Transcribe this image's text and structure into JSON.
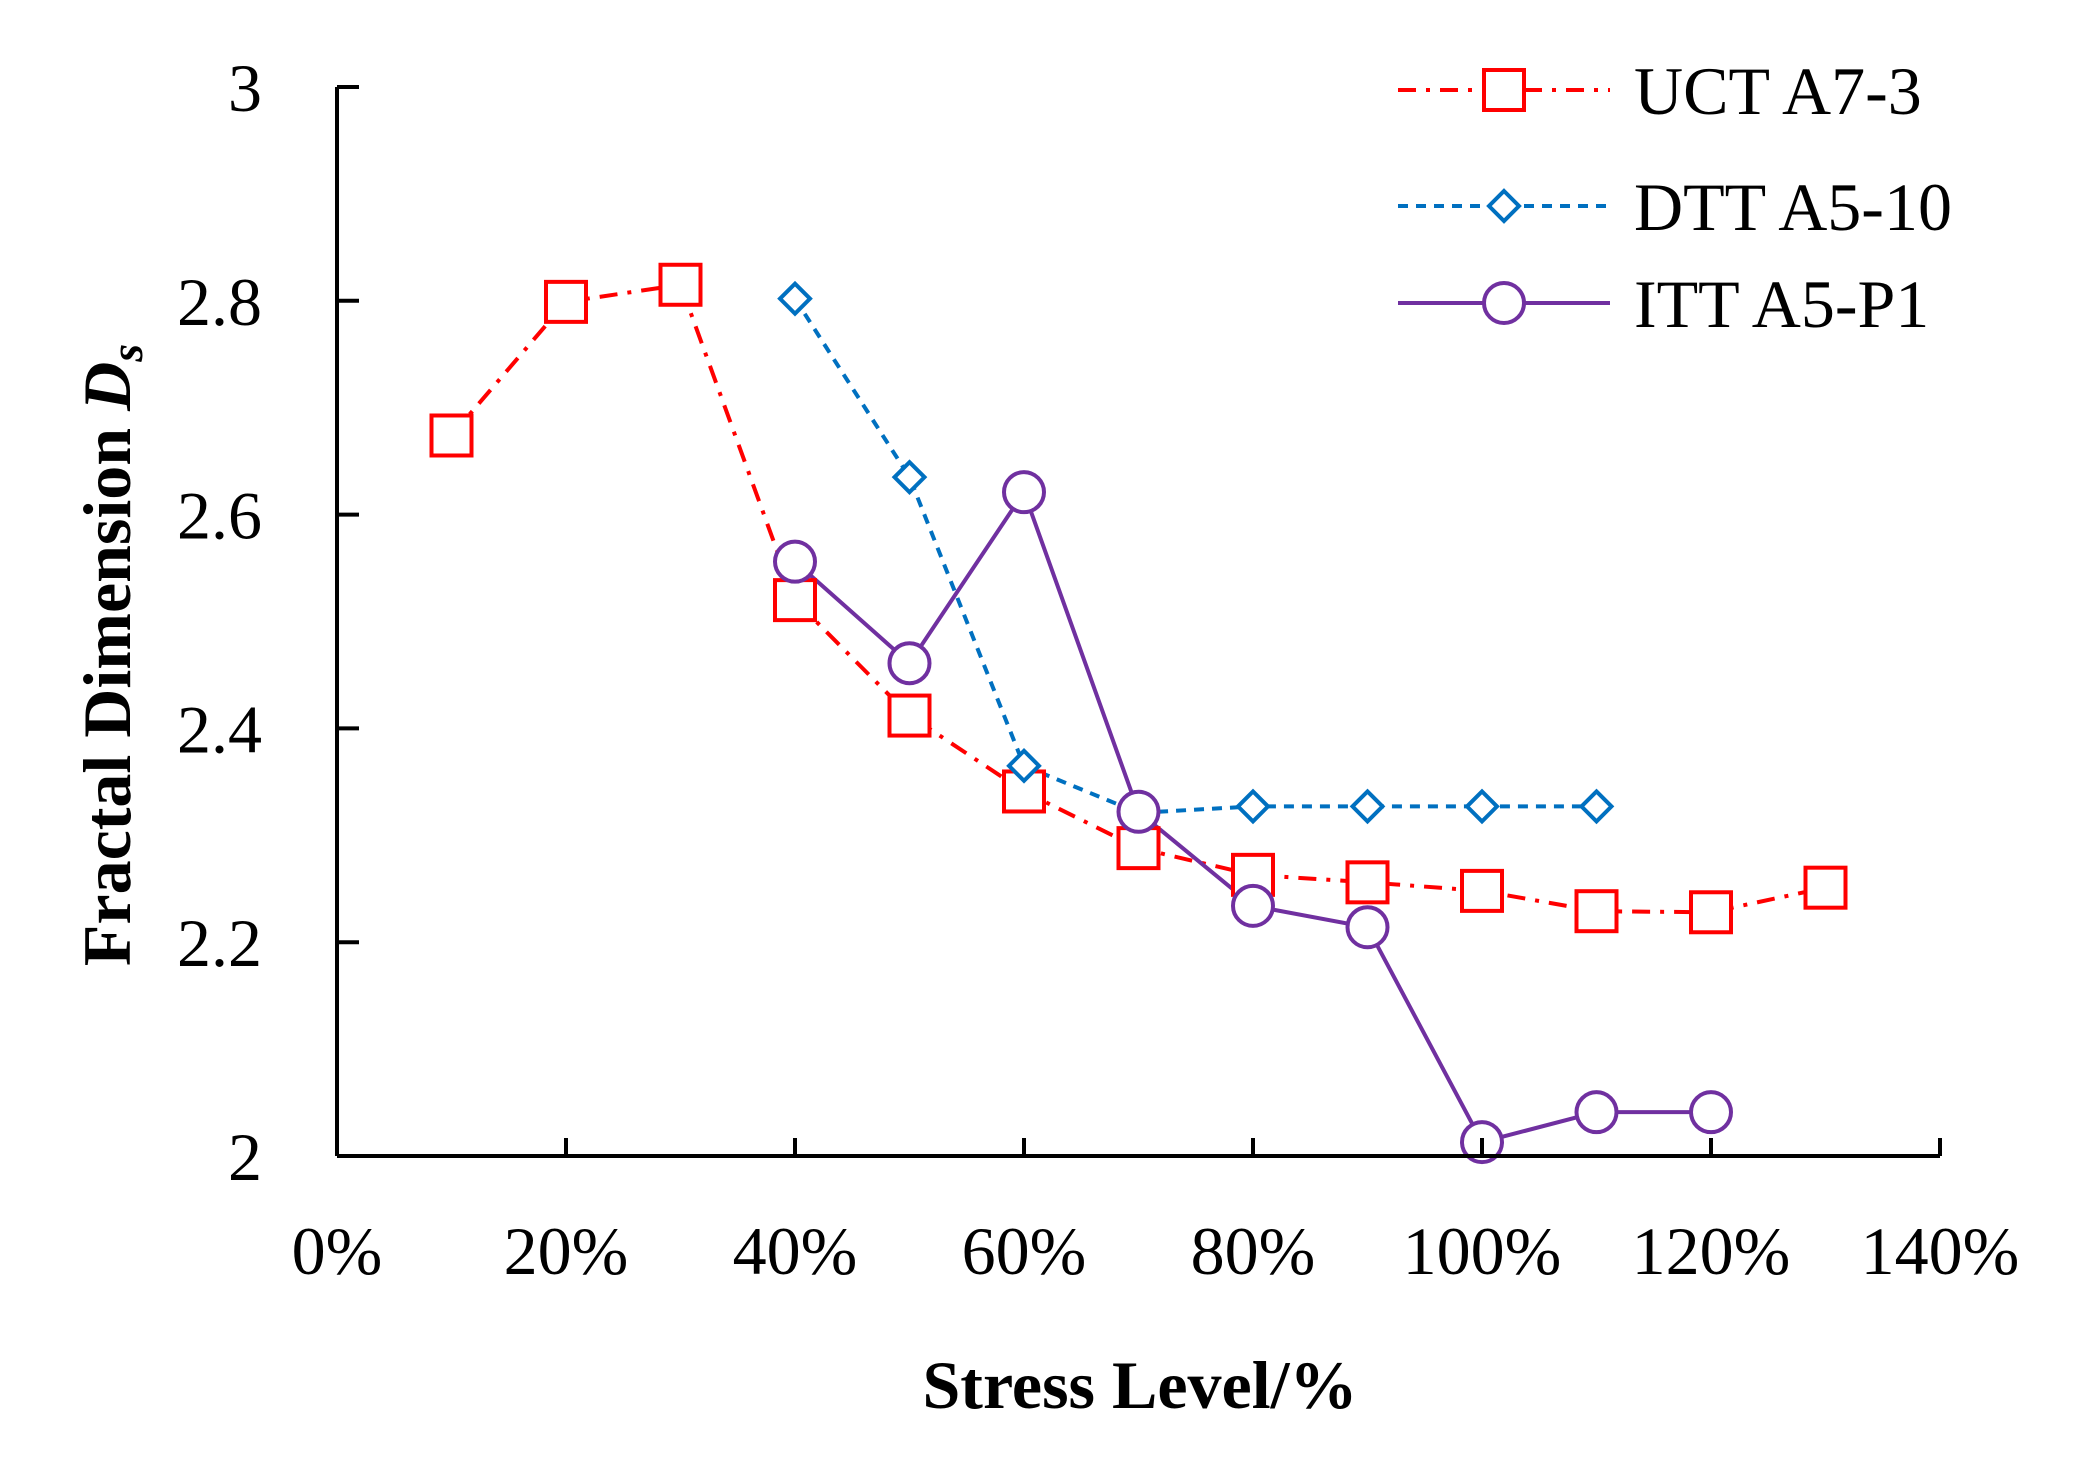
{
  "chart_data": {
    "type": "line",
    "title": "",
    "xlabel": "Stress Level/%",
    "ylabel": "Fractal Dimension ",
    "ylabel_symbol": "D",
    "ylabel_subscript": "s",
    "xlim": [
      0,
      140
    ],
    "ylim": [
      2.0,
      3.0
    ],
    "x_ticks": [
      0,
      20,
      40,
      60,
      80,
      100,
      120,
      140
    ],
    "x_tick_labels": [
      "0%",
      "20%",
      "40%",
      "60%",
      "80%",
      "100%",
      "120%",
      "140%"
    ],
    "y_ticks": [
      2.0,
      2.2,
      2.4,
      2.6,
      2.8,
      3.0
    ],
    "y_tick_labels": [
      "2",
      "2.2",
      "2.4",
      "2.6",
      "2.8",
      "3"
    ],
    "grid": false,
    "legend_position": "top-right",
    "series": [
      {
        "name": "UCT A7-3",
        "color": "#ff0000",
        "line_style": "dash-dot",
        "marker": "square",
        "x": [
          10,
          20,
          30,
          40,
          50,
          60,
          70,
          80,
          90,
          100,
          110,
          120,
          130
        ],
        "y": [
          2.674,
          2.799,
          2.815,
          2.52,
          2.412,
          2.341,
          2.288,
          2.263,
          2.256,
          2.248,
          2.229,
          2.228,
          2.251
        ]
      },
      {
        "name": "DTT A5-10",
        "color": "#0070c0",
        "line_style": "dashed",
        "marker": "diamond",
        "x": [
          40,
          50,
          60,
          70,
          80,
          90,
          100,
          110
        ],
        "y": [
          2.802,
          2.635,
          2.365,
          2.321,
          2.327,
          2.327,
          2.327,
          2.327
        ]
      },
      {
        "name": "ITT A5-P1",
        "color": "#7030a0",
        "line_style": "solid",
        "marker": "circle",
        "x": [
          40,
          50,
          60,
          70,
          80,
          90,
          100,
          110,
          120
        ],
        "y": [
          2.556,
          2.461,
          2.621,
          2.322,
          2.234,
          2.214,
          2.013,
          2.041,
          2.041
        ]
      }
    ]
  }
}
